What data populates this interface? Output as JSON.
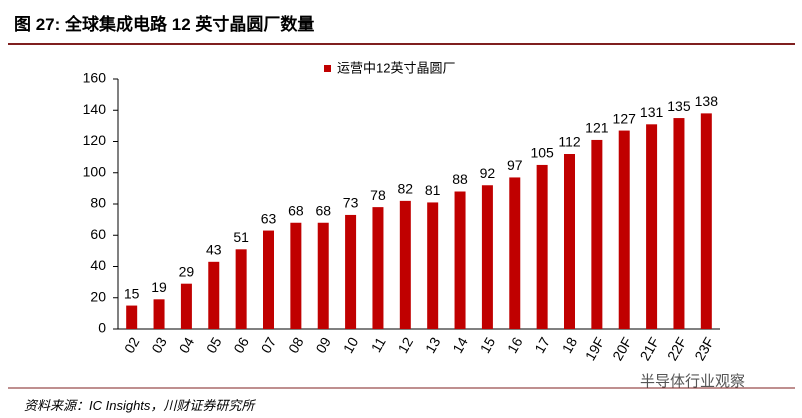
{
  "chart_data": {
    "type": "bar",
    "title": "图 27: 全球集成电路 12 英寸晶圆厂数量",
    "source": "资料来源：IC Insights，川财证券研究所",
    "watermark": "半导体行业观察",
    "categories": [
      "02",
      "03",
      "04",
      "05",
      "06",
      "07",
      "08",
      "09",
      "10",
      "11",
      "12",
      "13",
      "14",
      "15",
      "16",
      "17",
      "18",
      "19F",
      "20F",
      "21F",
      "22F",
      "23F"
    ],
    "series": [
      {
        "name": "运营中12英寸晶圆厂",
        "color": "#c00000",
        "values": [
          15,
          19,
          29,
          43,
          51,
          63,
          68,
          68,
          73,
          78,
          82,
          81,
          88,
          92,
          97,
          105,
          112,
          121,
          127,
          131,
          135,
          138
        ]
      }
    ],
    "ylim": [
      0,
      160
    ],
    "yticks": [
      0,
      20,
      40,
      60,
      80,
      100,
      120,
      140,
      160
    ],
    "grid": false,
    "legend": "top"
  }
}
